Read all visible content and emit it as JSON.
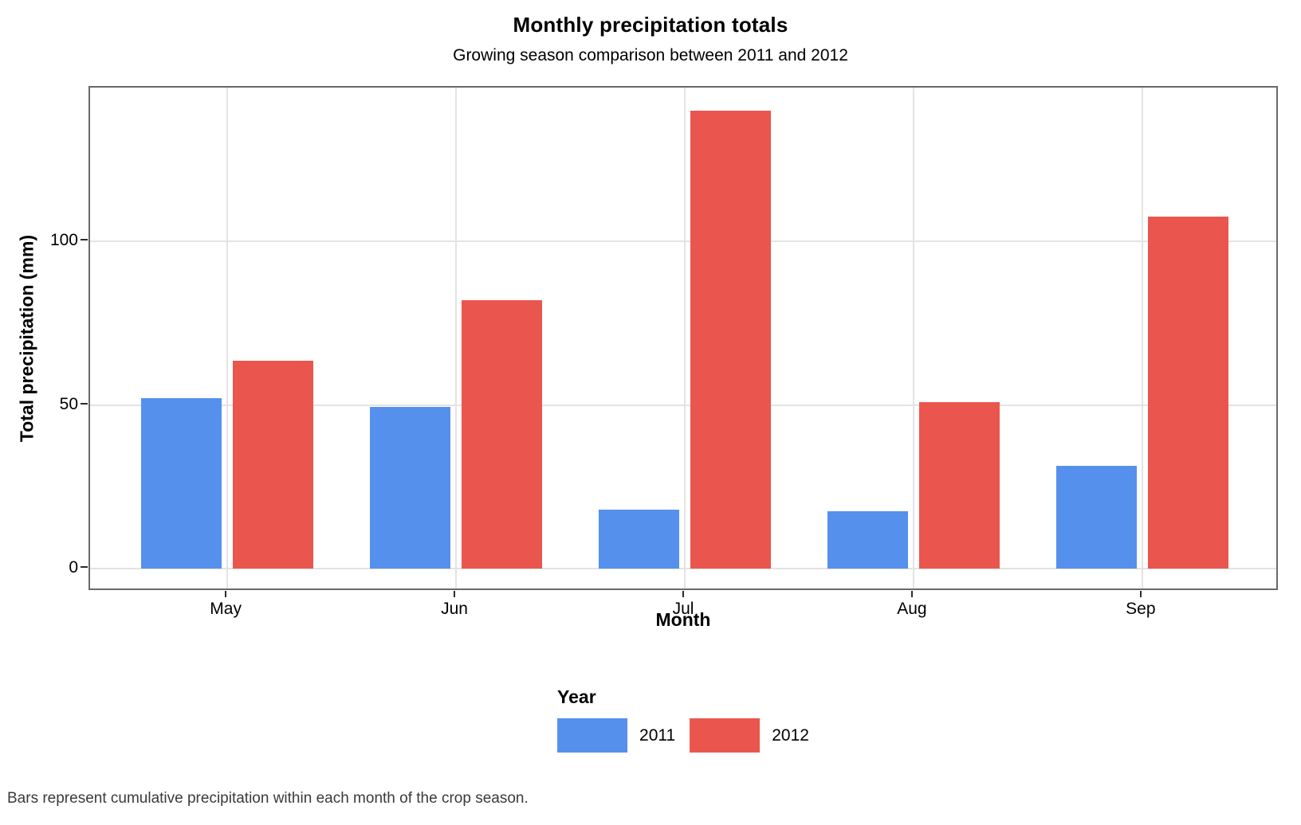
{
  "chart_data": {
    "type": "bar",
    "title": "Monthly precipitation totals",
    "subtitle": "Growing season comparison between 2011 and 2012",
    "caption": "Bars represent cumulative precipitation within each month of the crop season.",
    "xlabel": "Month",
    "ylabel": "Total precipitation (mm)",
    "categories": [
      "May",
      "Jun",
      "Jul",
      "Aug",
      "Sep"
    ],
    "series": [
      {
        "name": "2011",
        "color": "#5590ED",
        "values": [
          52,
          49.5,
          18,
          17.5,
          31.5
        ]
      },
      {
        "name": "2012",
        "color": "#EA564E",
        "values": [
          63.5,
          82,
          140,
          51,
          107.5
        ]
      }
    ],
    "yticks": [
      0,
      50,
      100
    ],
    "ylim": [
      -7,
      147
    ],
    "grid": true,
    "legend": {
      "title": "Year",
      "position": "bottom"
    }
  },
  "style_colors": {
    "background": "#FFFFFF",
    "panel_border": "#696969",
    "gridline": "#E3E3E3",
    "tick_mark": "#2B2B2B",
    "text": "#000000",
    "caption_text": "#3A3A3A"
  }
}
